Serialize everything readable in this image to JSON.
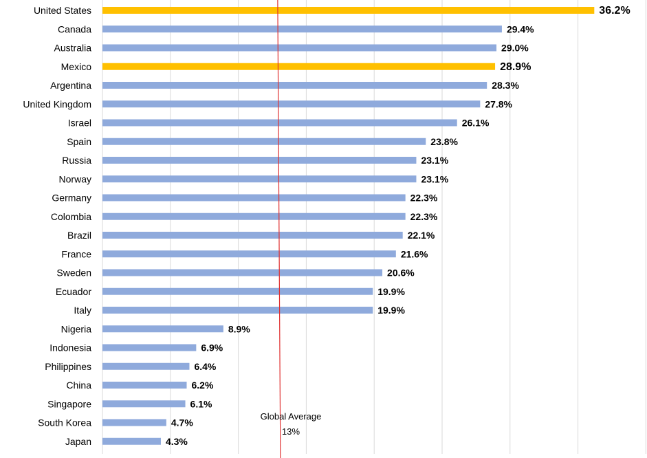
{
  "chart_data": {
    "type": "bar",
    "orientation": "horizontal",
    "categories": [
      "United States",
      "Canada",
      "Australia",
      "Mexico",
      "Argentina",
      "United Kingdom",
      "Israel",
      "Spain",
      "Russia",
      "Norway",
      "Germany",
      "Colombia",
      "Brazil",
      "France",
      "Sweden",
      "Ecuador",
      "Italy",
      "Nigeria",
      "Indonesia",
      "Philippines",
      "China",
      "Singapore",
      "South Korea",
      "Japan"
    ],
    "values": [
      36.2,
      29.4,
      29.0,
      28.9,
      28.3,
      27.8,
      26.1,
      23.8,
      23.1,
      23.1,
      22.3,
      22.3,
      22.1,
      21.6,
      20.6,
      19.9,
      19.9,
      8.9,
      6.9,
      6.4,
      6.2,
      6.1,
      4.7,
      4.3
    ],
    "value_labels": [
      "36.2%",
      "29.4%",
      "29.0%",
      "28.9%",
      "28.3%",
      "27.8%",
      "26.1%",
      "23.8%",
      "23.1%",
      "23.1%",
      "22.3%",
      "22.3%",
      "22.1%",
      "21.6%",
      "20.6%",
      "19.9%",
      "19.9%",
      "8.9%",
      "6.9%",
      "6.4%",
      "6.2%",
      "6.1%",
      "4.7%",
      "4.3%"
    ],
    "highlighted": [
      "United States",
      "Mexico"
    ],
    "colors": {
      "default": "#8faadc",
      "highlight": "#ffc000",
      "reference_line": "#e03030",
      "grid": "#d9d9d9"
    },
    "xlim": [
      0,
      40
    ],
    "grid": true,
    "reference_line": {
      "value": 13,
      "label": "Global Average",
      "value_label": "13%"
    }
  }
}
